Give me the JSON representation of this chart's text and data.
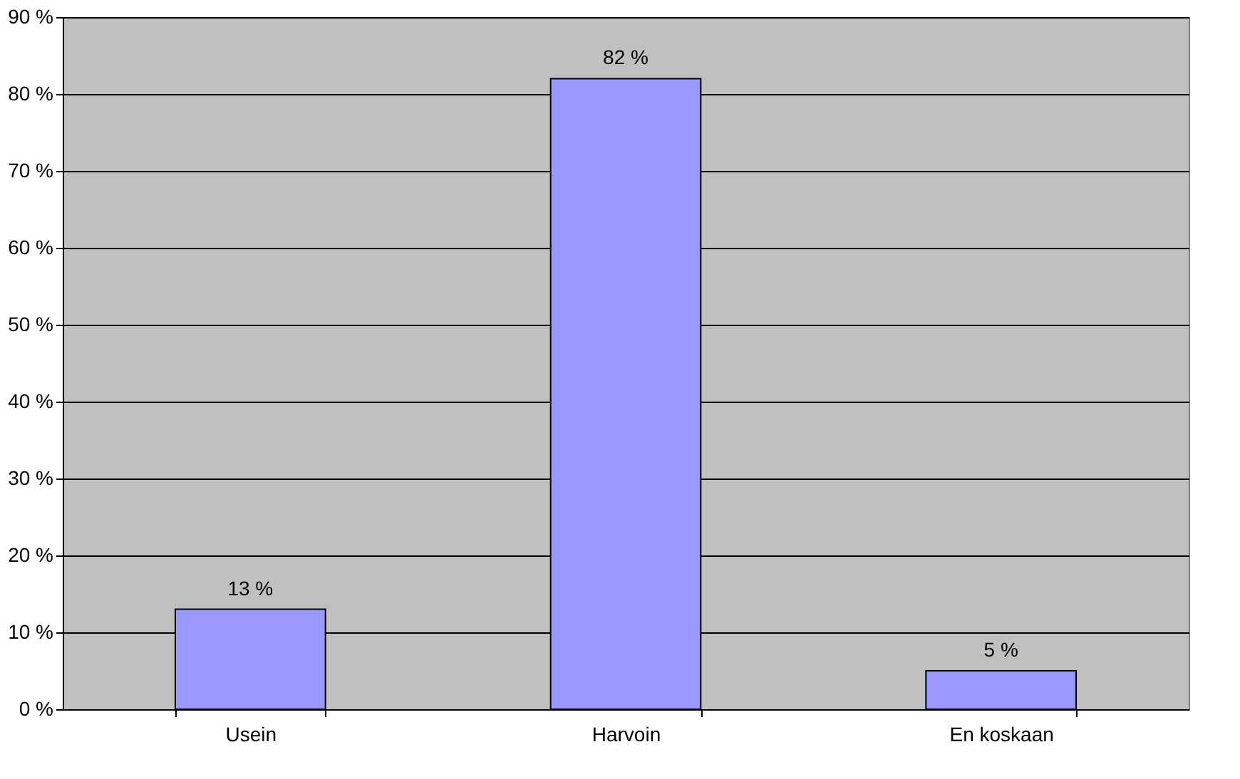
{
  "chart_data": {
    "type": "bar",
    "categories": [
      "Usein",
      "Harvoin",
      "En koskaan"
    ],
    "values": [
      13,
      82,
      5
    ],
    "value_labels": [
      "13 %",
      "82 %",
      "5 %"
    ],
    "color": "#9999ff",
    "ylim": [
      0,
      90
    ],
    "yticks": [
      {
        "value": 0,
        "label": "0 %"
      },
      {
        "value": 10,
        "label": "10 %"
      },
      {
        "value": 20,
        "label": "20 %"
      },
      {
        "value": 30,
        "label": "30 %"
      },
      {
        "value": 40,
        "label": "40 %"
      },
      {
        "value": 50,
        "label": "50 %"
      },
      {
        "value": 60,
        "label": "60 %"
      },
      {
        "value": 70,
        "label": "70 %"
      },
      {
        "value": 80,
        "label": "80 %"
      },
      {
        "value": 90,
        "label": "90 %"
      }
    ],
    "grid": "y"
  }
}
